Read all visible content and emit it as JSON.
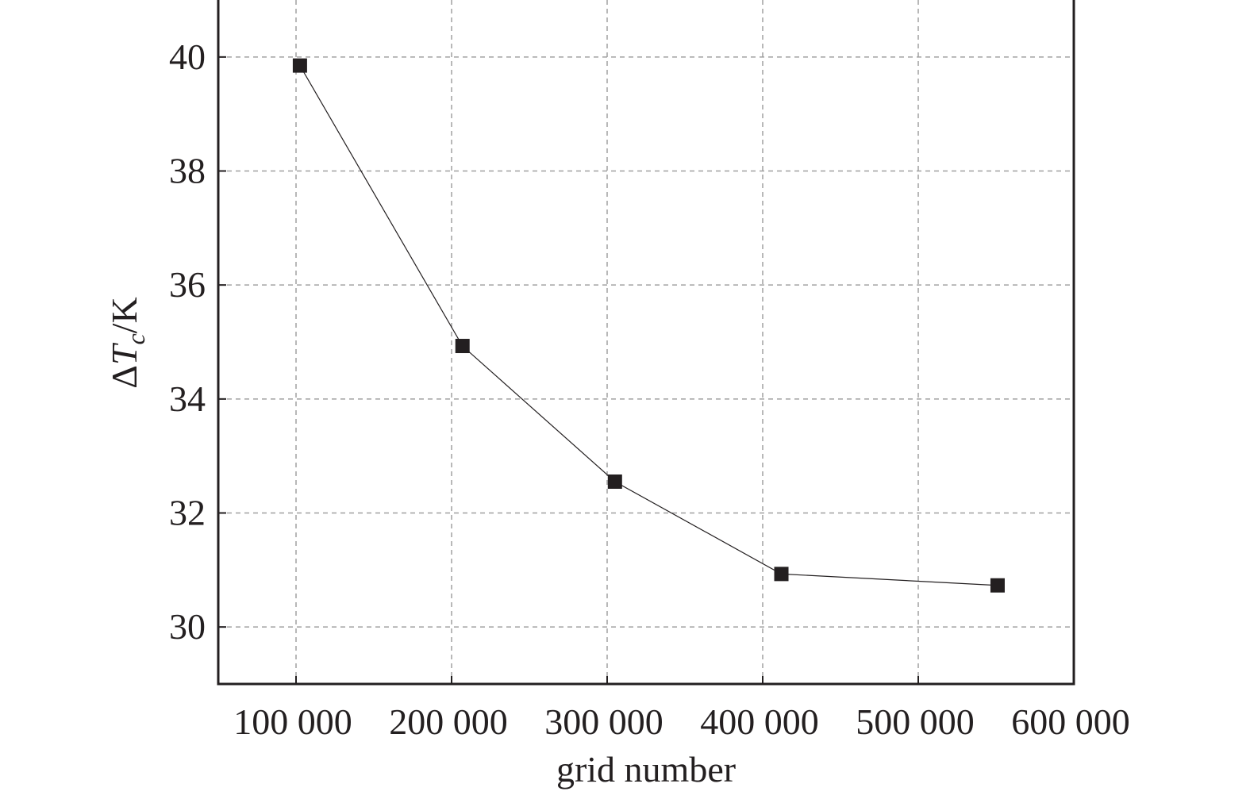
{
  "chart_data": {
    "type": "line",
    "title": "",
    "xlabel": "grid number",
    "ylabel": {
      "delta": "Δ",
      "var": "T",
      "sub": "c",
      "unit": "/K"
    },
    "xlim": [
      50000,
      600000
    ],
    "ylim": [
      29,
      41
    ],
    "x_ticks": [
      100000,
      200000,
      300000,
      400000,
      500000,
      600000
    ],
    "x_tick_labels": [
      "100 000",
      "200 000",
      "300 000",
      "400 000",
      "500 000",
      "600 000"
    ],
    "y_ticks": [
      30,
      32,
      34,
      36,
      38,
      40
    ],
    "y_tick_labels": [
      "30",
      "32",
      "34",
      "36",
      "38",
      "40"
    ],
    "grid": true,
    "marker": "square",
    "series": [
      {
        "x": [
          102500,
          207000,
          305000,
          412000,
          551000
        ],
        "y": [
          39.85,
          34.93,
          32.55,
          30.93,
          30.73
        ]
      }
    ],
    "colors": {
      "line": "#231f20",
      "marker": "#231f20",
      "grid": "#a0a0a0",
      "text": "#231f20"
    }
  }
}
